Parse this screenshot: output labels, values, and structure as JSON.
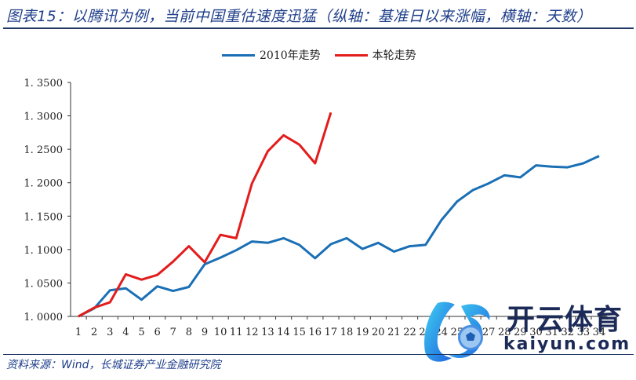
{
  "header": {
    "title": "图表15：以腾讯为例，当前中国重估速度迅猛（纵轴：基准日以来涨幅，横轴：天数）"
  },
  "footer": {
    "source": "资料来源：Wind，长城证券产业金融研究院"
  },
  "watermark": {
    "brand": "开云体育",
    "url": "kaiyun.com"
  },
  "chart_data": {
    "type": "line",
    "title": "以腾讯为例，当前中国重估速度迅猛",
    "xlabel": "天数",
    "ylabel": "基准日以来涨幅",
    "ylim": [
      1.0,
      1.35
    ],
    "yticks": [
      "1.0000",
      "1.0500",
      "1.1000",
      "1.1500",
      "1.2000",
      "1.2500",
      "1.3000",
      "1.3500"
    ],
    "x": [
      1,
      2,
      3,
      4,
      5,
      6,
      7,
      8,
      9,
      10,
      11,
      12,
      13,
      14,
      15,
      16,
      17,
      18,
      19,
      20,
      21,
      22,
      23,
      24,
      25,
      26,
      27,
      28,
      29,
      30,
      31,
      32,
      33,
      34
    ],
    "grid": false,
    "legend_position": "top",
    "series": [
      {
        "name": "2010年走势",
        "color": "#1a6fb5",
        "values": [
          1.0,
          1.012,
          1.039,
          1.042,
          1.025,
          1.045,
          1.038,
          1.044,
          1.078,
          1.088,
          1.099,
          1.112,
          1.11,
          1.117,
          1.107,
          1.087,
          1.108,
          1.117,
          1.101,
          1.11,
          1.097,
          1.105,
          1.107,
          1.144,
          1.172,
          1.189,
          1.199,
          1.211,
          1.208,
          1.226,
          1.224,
          1.223,
          1.229,
          1.24
        ]
      },
      {
        "name": "本轮走势",
        "color": "#e31c1c",
        "values": [
          1.0,
          1.013,
          1.021,
          1.063,
          1.055,
          1.062,
          1.082,
          1.105,
          1.081,
          1.122,
          1.117,
          1.199,
          1.247,
          1.271,
          1.257,
          1.229,
          1.305
        ]
      }
    ]
  }
}
